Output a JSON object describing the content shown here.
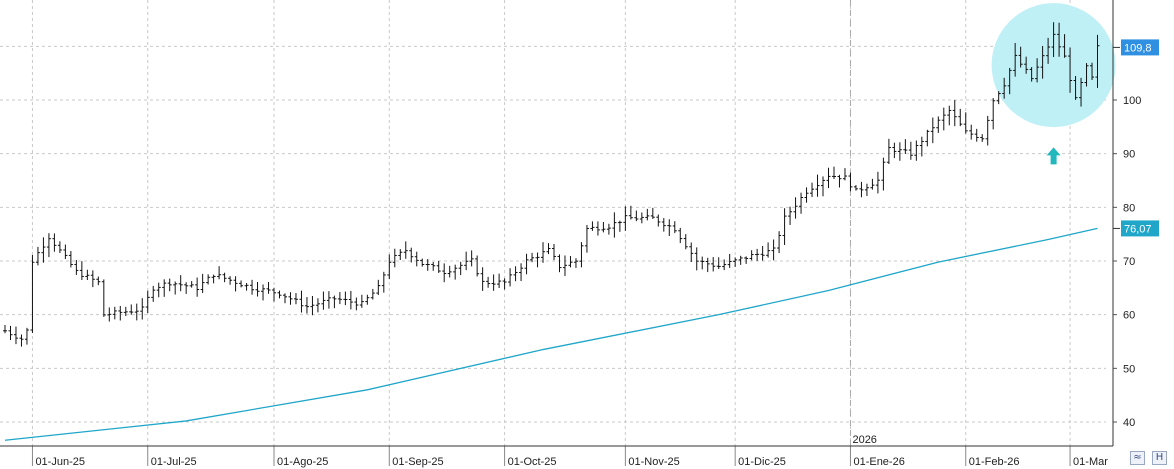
{
  "chart_data": {
    "type": "ohlc",
    "y_range": [
      36,
      116
    ],
    "y_ticks": [
      40,
      50,
      60,
      70,
      80,
      90,
      100
    ],
    "x_ticks": [
      {
        "i": 5,
        "label": "01-Jun-25"
      },
      {
        "i": 26,
        "label": "01-Jul-25"
      },
      {
        "i": 49,
        "label": "01-Ago-25"
      },
      {
        "i": 70,
        "label": "01-Sep-25"
      },
      {
        "i": 91,
        "label": "01-Oct-25"
      },
      {
        "i": 113,
        "label": "01-Nov-25"
      },
      {
        "i": 133,
        "label": "01-Dic-25"
      },
      {
        "i": 154,
        "label": "01-Ene-26"
      },
      {
        "i": 175,
        "label": "01-Feb-26"
      },
      {
        "i": 194,
        "label": "01-Mar"
      }
    ],
    "year_marker": {
      "i": 154,
      "label": "2026"
    },
    "last_price": {
      "value": 109.8,
      "label": "109,8"
    },
    "moving_average": {
      "last_label": "76,07",
      "color": "#1fa6c9",
      "points": [
        [
          0,
          36.6
        ],
        [
          33,
          40.2
        ],
        [
          66,
          46.0
        ],
        [
          98,
          53.5
        ],
        [
          130,
          60.0
        ],
        [
          150,
          64.5
        ],
        [
          170,
          69.8
        ],
        [
          190,
          74.0
        ],
        [
          199,
          76.07
        ]
      ]
    },
    "price_anchors": [
      [
        0,
        57
      ],
      [
        3,
        55.5
      ],
      [
        4,
        57
      ],
      [
        5,
        70
      ],
      [
        8,
        74.5
      ],
      [
        13,
        68
      ],
      [
        17,
        66
      ],
      [
        18,
        60
      ],
      [
        25,
        61
      ],
      [
        27,
        65
      ],
      [
        30,
        66
      ],
      [
        35,
        65
      ],
      [
        38,
        67.5
      ],
      [
        45,
        65
      ],
      [
        50,
        64
      ],
      [
        55,
        61.5
      ],
      [
        60,
        63
      ],
      [
        65,
        62
      ],
      [
        68,
        65
      ],
      [
        70,
        70
      ],
      [
        73,
        72
      ],
      [
        76,
        69.5
      ],
      [
        80,
        68
      ],
      [
        85,
        70
      ],
      [
        87,
        66
      ],
      [
        91,
        66
      ],
      [
        95,
        70
      ],
      [
        99,
        72
      ],
      [
        101,
        69
      ],
      [
        104,
        70
      ],
      [
        106,
        76
      ],
      [
        110,
        76.5
      ],
      [
        113,
        78
      ],
      [
        118,
        78
      ],
      [
        122,
        76
      ],
      [
        126,
        70
      ],
      [
        130,
        69
      ],
      [
        136,
        71
      ],
      [
        140,
        72
      ],
      [
        142,
        78
      ],
      [
        146,
        83
      ],
      [
        150,
        86
      ],
      [
        153,
        85.5
      ],
      [
        155,
        83
      ],
      [
        159,
        85
      ],
      [
        161,
        91
      ],
      [
        165,
        90
      ],
      [
        169,
        95
      ],
      [
        172,
        98
      ],
      [
        175,
        94
      ],
      [
        178,
        93
      ],
      [
        180,
        100
      ],
      [
        182,
        103
      ],
      [
        184,
        108
      ],
      [
        187,
        104
      ],
      [
        189,
        108
      ],
      [
        191,
        112
      ],
      [
        193,
        108
      ],
      [
        195,
        100
      ],
      [
        197,
        106
      ],
      [
        198,
        104
      ],
      [
        199,
        109.8
      ]
    ],
    "annotations": [
      {
        "type": "highlight-ellipse",
        "center": [
          191,
          106.5
        ],
        "color": "#bff0f6"
      },
      {
        "type": "up-arrow",
        "at": [
          191,
          89.5
        ],
        "color": "#23b8be"
      }
    ],
    "colors": {
      "bars": "#111111",
      "grid": "#c9c9c9",
      "price_label_bg": "#2f8fe0",
      "ma_label_bg": "#1fa6c9"
    }
  },
  "controls": {
    "scale_icon": "≈",
    "save_icon": "H"
  }
}
